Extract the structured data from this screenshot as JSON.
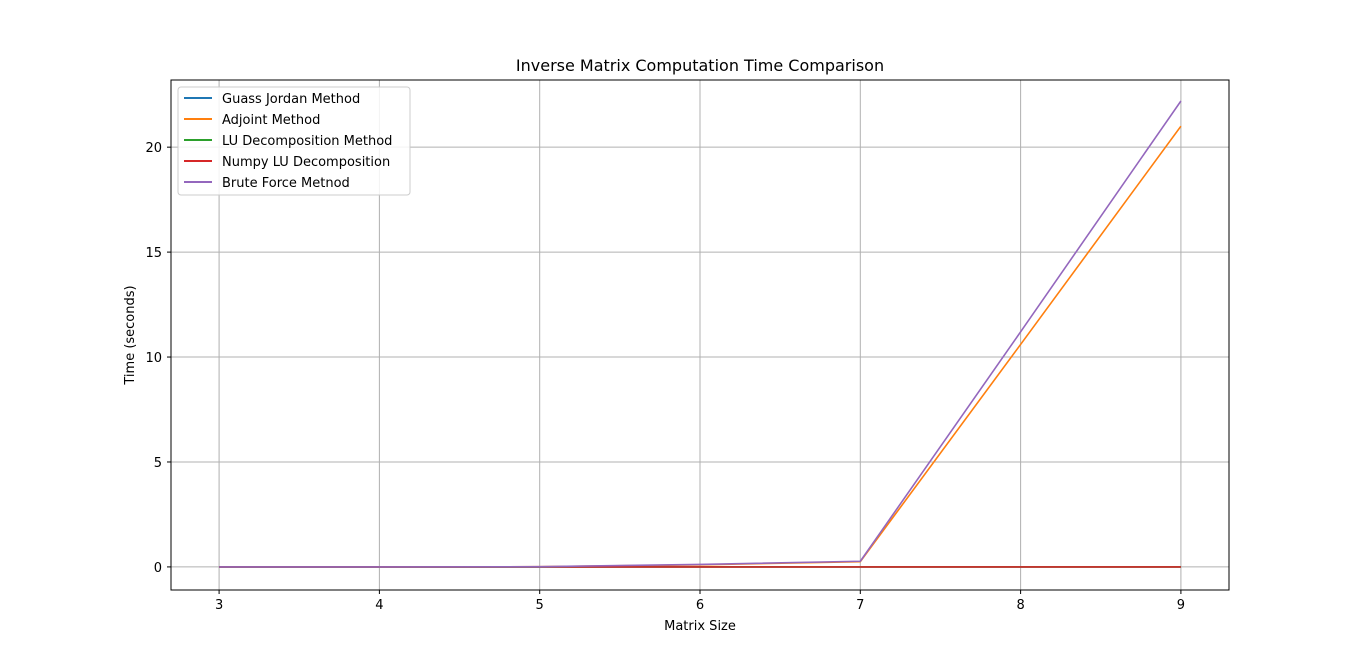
{
  "chart_data": {
    "type": "line",
    "title": "Inverse Matrix Computation Time Comparison",
    "xlabel": "Matrix Size",
    "ylabel": "Time (seconds)",
    "x": [
      3,
      4,
      5,
      6,
      7,
      8,
      9
    ],
    "xlim": [
      2.7,
      9.3
    ],
    "ylim": [
      -1.1,
      23.2
    ],
    "xticks": [
      3,
      4,
      5,
      6,
      7,
      8,
      9
    ],
    "yticks": [
      0,
      5,
      10,
      15,
      20
    ],
    "grid": true,
    "legend_position": "upper-left",
    "series": [
      {
        "name": "Guass Jordan Method",
        "color": "#1f77b4",
        "values": [
          0,
          0,
          0,
          0,
          0,
          0,
          0
        ]
      },
      {
        "name": "Adjoint Method",
        "color": "#ff7f0e",
        "values": [
          0,
          0,
          0.01,
          0.1,
          0.25,
          10.6,
          21.0
        ]
      },
      {
        "name": "LU Decomposition Method",
        "color": "#2ca02c",
        "values": [
          0,
          0,
          0,
          0,
          0,
          0,
          0
        ]
      },
      {
        "name": "Numpy LU Decomposition",
        "color": "#d62728",
        "values": [
          0,
          0,
          0,
          0,
          0,
          0,
          0
        ]
      },
      {
        "name": "Brute Force Metnod",
        "color": "#9467bd",
        "values": [
          0,
          0,
          0.01,
          0.12,
          0.27,
          11.2,
          22.2
        ]
      }
    ]
  }
}
